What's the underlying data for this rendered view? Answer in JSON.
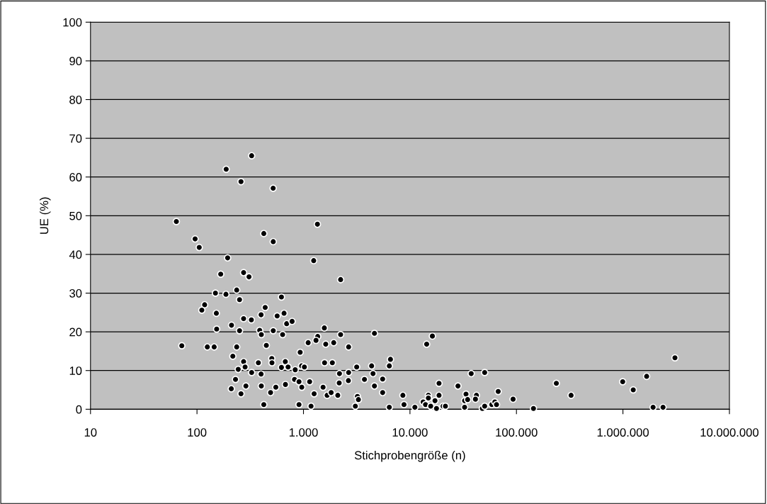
{
  "chart_data": {
    "type": "scatter",
    "xlabel": "Stichprobengröße (n)",
    "ylabel": "UE (%)",
    "log": "x",
    "xlim": [
      10,
      10000000
    ],
    "ylim": [
      0,
      100
    ],
    "xticks": [
      10,
      100,
      {
        "value": 1000,
        "label": "1.000"
      },
      {
        "value": 10000,
        "label": "10.000"
      },
      {
        "value": 100000,
        "label": "100.000"
      },
      {
        "value": 1000000,
        "label": "1.000.000"
      },
      {
        "value": 10000000,
        "label": "10.000.000"
      }
    ],
    "yticks": [
      0,
      10,
      20,
      30,
      40,
      50,
      60,
      70,
      80,
      90,
      100
    ],
    "grid": "y",
    "marker": "circle",
    "series": [
      {
        "color": "#000000",
        "x": [
          326,
          188,
          259,
          519,
          64,
          1352,
          96,
          424,
          105,
          520,
          194,
          1247,
          167,
          274,
          308,
          2233,
          149,
          187,
          236,
          251,
          621,
          118,
          111,
          152,
          437,
          400,
          566,
          657,
          695,
          782,
          274,
          324,
          211,
          153,
          251,
          388,
          402,
          520,
          637,
          1570,
          1360,
          1311,
          1107,
          1618,
          1923,
          2233,
          2655,
          4640,
          72,
          125,
          145,
          236,
          448,
          217,
          931,
          504,
          274,
          283,
          244,
          377,
          506,
          675,
          621,
          717,
          836,
          960,
          1020,
          326,
          400,
          1578,
          1867,
          2178,
          2655,
          3160,
          4365,
          4500,
          230,
          824,
          908,
          1143,
          964,
          210,
          288,
          402,
          550,
          677,
          259,
          491,
          1259,
          1528,
          1668,
          1820,
          2100,
          2166,
          2641,
          3740,
          4640,
          3210,
          3280,
          3070,
          424,
          908,
          1178,
          5540,
          5540,
          6560,
          6400,
          6400,
          8580,
          8790,
          11120,
          14350,
          16240,
          13300,
          14000,
          14890,
          14890,
          15670,
          17180,
          17750,
          18750,
          18750,
          20460,
          21530,
          28240,
          32600,
          32600,
          33600,
          34800,
          37600,
          42100,
          41200,
          47800,
          50300,
          50300,
          58700,
          62700,
          65000,
          67400,
          93000,
          144500,
          237000,
          326000,
          3080000,
          1670000,
          995000,
          1250000,
          1920000,
          2380000
        ],
        "values": [
          65.5,
          62.0,
          58.8,
          57.1,
          48.5,
          47.8,
          44.0,
          45.4,
          41.8,
          43.3,
          39.1,
          38.4,
          34.9,
          35.3,
          34.2,
          33.5,
          30.0,
          29.7,
          30.8,
          28.3,
          29.0,
          27.0,
          25.6,
          24.8,
          26.3,
          24.4,
          24.1,
          24.8,
          22.1,
          22.7,
          23.4,
          23.1,
          21.7,
          20.7,
          20.3,
          20.4,
          19.3,
          20.3,
          19.3,
          21.0,
          18.8,
          17.8,
          17.2,
          16.8,
          17.2,
          19.3,
          16.1,
          19.6,
          16.4,
          16.1,
          16.1,
          16.1,
          16.5,
          13.7,
          14.7,
          13.1,
          12.3,
          10.9,
          10.3,
          12.0,
          12.0,
          12.3,
          10.8,
          10.9,
          10.2,
          11.2,
          10.9,
          9.5,
          9.1,
          12.0,
          12.0,
          9.2,
          9.5,
          10.9,
          11.2,
          9.2,
          7.7,
          7.7,
          7.1,
          7.1,
          5.7,
          5.3,
          6.0,
          6.0,
          5.7,
          6.4,
          4.0,
          4.3,
          4.0,
          5.7,
          3.6,
          4.3,
          3.6,
          6.8,
          7.4,
          7.7,
          6.0,
          3.3,
          2.5,
          0.8,
          1.2,
          1.2,
          0.8,
          7.8,
          4.3,
          12.9,
          11.2,
          0.5,
          3.6,
          1.2,
          0.5,
          16.8,
          18.9,
          1.9,
          1.2,
          3.6,
          2.9,
          0.8,
          2.2,
          0.2,
          6.7,
          3.6,
          0.8,
          0.8,
          6.0,
          2.2,
          0.5,
          3.9,
          2.5,
          9.2,
          3.6,
          2.6,
          0.2,
          0.8,
          9.5,
          1.2,
          1.9,
          1.2,
          4.6,
          2.6,
          0.2,
          6.7,
          3.6,
          13.3,
          8.5,
          7.1,
          5.0,
          0.5,
          0.5
        ]
      }
    ]
  }
}
